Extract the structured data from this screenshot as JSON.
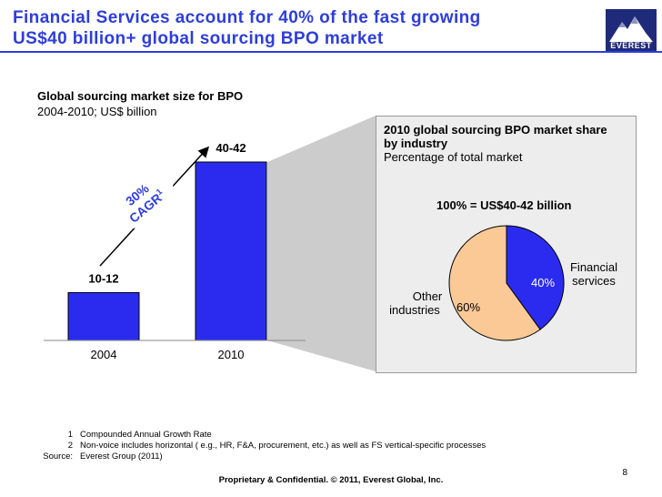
{
  "header": {
    "title_line1": "Financial Services account for 40% of the fast growing",
    "title_line2": "US$40 billion+ global sourcing BPO market",
    "logo_text": "EVEREST"
  },
  "left_chart": {
    "title": "Global sourcing market size for BPO",
    "subtitle": "2004-2010; US$ billion",
    "cagr_pct": "30%",
    "cagr_label": "CAGR",
    "cagr_sup": "1"
  },
  "right_panel": {
    "title_line1": "2010 global sourcing BPO market share",
    "title_line2": "by industry",
    "subtitle": "Percentage of total market",
    "total_label": "100% = US$40-42 billion"
  },
  "chart_data": [
    {
      "type": "bar",
      "title": "Global sourcing market size for BPO",
      "subtitle": "2004-2010; US$ billion",
      "categories": [
        "2004",
        "2010"
      ],
      "values": [
        11,
        41
      ],
      "value_labels": [
        "10-12",
        "40-42"
      ],
      "color": "#2b2bf0"
    },
    {
      "type": "pie",
      "title": "2010 global sourcing BPO market share by industry",
      "subtitle": "Percentage of total market",
      "labels": [
        "Financial services",
        "Other industries"
      ],
      "label_lines": [
        [
          "Financial",
          "services"
        ],
        [
          "Other",
          "industries"
        ]
      ],
      "values": [
        40,
        60
      ],
      "value_labels": [
        "40%",
        "60%"
      ],
      "colors": [
        "#2b2bf0",
        "#fbc996"
      ]
    }
  ],
  "footnotes": [
    {
      "marker": "1",
      "text": "Compounded Annual Growth Rate"
    },
    {
      "marker": "2",
      "text": "Non-voice includes horizontal ( e.g., HR, F&A, procurement, etc.) as well as FS vertical-specific processes"
    },
    {
      "marker": "Source:",
      "text": "Everest Group (2011)"
    }
  ],
  "footer": {
    "page_number": "8",
    "confidential": "Proprietary & Confidential. © 2011, Everest Global, Inc."
  }
}
